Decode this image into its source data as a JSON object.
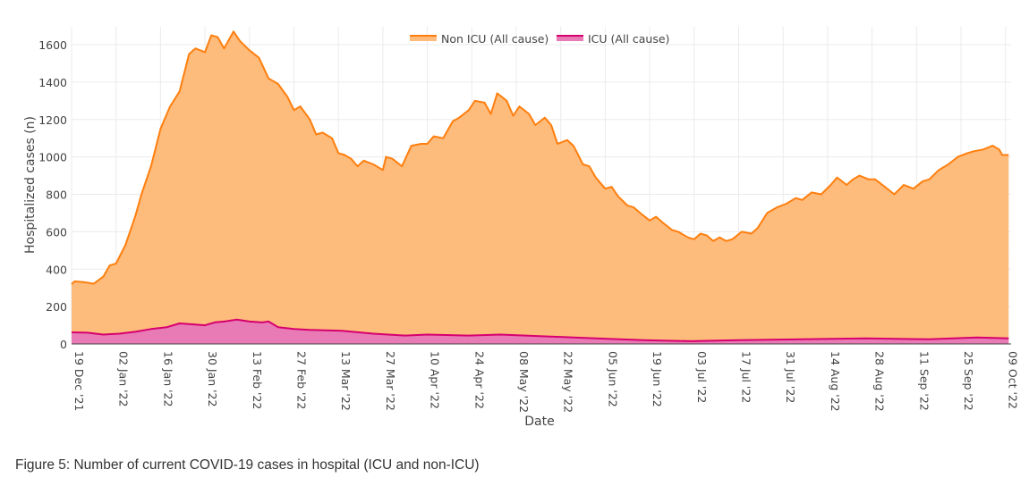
{
  "chart_data": {
    "type": "area",
    "title": "",
    "xlabel": "Date",
    "ylabel": "Hospitalized cases (n)",
    "x_unit": "days since 19 Dec '21",
    "xlim": [
      0,
      296
    ],
    "ylim": [
      0,
      1700
    ],
    "yticks": [
      0,
      200,
      400,
      600,
      800,
      1000,
      1200,
      1400,
      1600
    ],
    "xticks": [
      {
        "day": 0,
        "label": "19 Dec '21"
      },
      {
        "day": 14,
        "label": "02 Jan '22"
      },
      {
        "day": 28,
        "label": "16 Jan '22"
      },
      {
        "day": 42,
        "label": "30 Jan '22"
      },
      {
        "day": 56,
        "label": "13 Feb '22"
      },
      {
        "day": 70,
        "label": "27 Feb '22"
      },
      {
        "day": 84,
        "label": "13 Mar '22"
      },
      {
        "day": 98,
        "label": "27 Mar '22"
      },
      {
        "day": 112,
        "label": "10 Apr '22"
      },
      {
        "day": 126,
        "label": "24 Apr '22"
      },
      {
        "day": 140,
        "label": "08 May '22"
      },
      {
        "day": 154,
        "label": "22 May '22"
      },
      {
        "day": 168,
        "label": "05 Jun '22"
      },
      {
        "day": 182,
        "label": "19 Jun '22"
      },
      {
        "day": 196,
        "label": "03 Jul '22"
      },
      {
        "day": 210,
        "label": "17 Jul '22"
      },
      {
        "day": 224,
        "label": "31 Jul '22"
      },
      {
        "day": 238,
        "label": "14 Aug '22"
      },
      {
        "day": 252,
        "label": "28 Aug '22"
      },
      {
        "day": 266,
        "label": "11 Sep '22"
      },
      {
        "day": 280,
        "label": "25 Sep '22"
      },
      {
        "day": 294,
        "label": "09 Oct '22"
      }
    ],
    "grid": true,
    "legend_position": "top-center",
    "series": [
      {
        "name": "Non ICU (All cause)",
        "line": "#ff7f0e",
        "fill": "#fdbb7c",
        "points": [
          [
            0,
            320
          ],
          [
            1,
            335
          ],
          [
            4,
            330
          ],
          [
            7,
            322
          ],
          [
            10,
            360
          ],
          [
            12,
            420
          ],
          [
            14,
            430
          ],
          [
            17,
            530
          ],
          [
            20,
            680
          ],
          [
            22,
            800
          ],
          [
            25,
            950
          ],
          [
            28,
            1150
          ],
          [
            31,
            1270
          ],
          [
            34,
            1350
          ],
          [
            37,
            1550
          ],
          [
            39,
            1580
          ],
          [
            42,
            1560
          ],
          [
            44,
            1650
          ],
          [
            46,
            1640
          ],
          [
            48,
            1580
          ],
          [
            51,
            1670
          ],
          [
            53,
            1620
          ],
          [
            56,
            1570
          ],
          [
            59,
            1530
          ],
          [
            62,
            1420
          ],
          [
            65,
            1390
          ],
          [
            68,
            1320
          ],
          [
            70,
            1250
          ],
          [
            72,
            1270
          ],
          [
            75,
            1200
          ],
          [
            77,
            1120
          ],
          [
            79,
            1130
          ],
          [
            82,
            1100
          ],
          [
            84,
            1020
          ],
          [
            86,
            1010
          ],
          [
            88,
            990
          ],
          [
            90,
            950
          ],
          [
            92,
            980
          ],
          [
            95,
            960
          ],
          [
            98,
            930
          ],
          [
            99,
            1000
          ],
          [
            101,
            990
          ],
          [
            104,
            950
          ],
          [
            107,
            1060
          ],
          [
            110,
            1070
          ],
          [
            112,
            1070
          ],
          [
            114,
            1110
          ],
          [
            117,
            1100
          ],
          [
            120,
            1190
          ],
          [
            122,
            1210
          ],
          [
            125,
            1250
          ],
          [
            127,
            1300
          ],
          [
            130,
            1290
          ],
          [
            132,
            1230
          ],
          [
            134,
            1340
          ],
          [
            137,
            1300
          ],
          [
            139,
            1220
          ],
          [
            141,
            1270
          ],
          [
            144,
            1230
          ],
          [
            146,
            1170
          ],
          [
            149,
            1210
          ],
          [
            151,
            1170
          ],
          [
            153,
            1070
          ],
          [
            156,
            1090
          ],
          [
            158,
            1060
          ],
          [
            161,
            960
          ],
          [
            163,
            950
          ],
          [
            165,
            890
          ],
          [
            168,
            830
          ],
          [
            170,
            840
          ],
          [
            172,
            790
          ],
          [
            175,
            740
          ],
          [
            177,
            730
          ],
          [
            179,
            700
          ],
          [
            182,
            660
          ],
          [
            184,
            680
          ],
          [
            186,
            650
          ],
          [
            189,
            610
          ],
          [
            191,
            600
          ],
          [
            194,
            570
          ],
          [
            196,
            560
          ],
          [
            198,
            590
          ],
          [
            200,
            580
          ],
          [
            202,
            550
          ],
          [
            204,
            570
          ],
          [
            206,
            550
          ],
          [
            208,
            560
          ],
          [
            211,
            600
          ],
          [
            214,
            590
          ],
          [
            216,
            620
          ],
          [
            219,
            700
          ],
          [
            222,
            730
          ],
          [
            225,
            750
          ],
          [
            228,
            780
          ],
          [
            230,
            770
          ],
          [
            233,
            810
          ],
          [
            236,
            800
          ],
          [
            239,
            850
          ],
          [
            241,
            890
          ],
          [
            244,
            850
          ],
          [
            246,
            880
          ],
          [
            248,
            900
          ],
          [
            251,
            880
          ],
          [
            253,
            880
          ],
          [
            256,
            840
          ],
          [
            259,
            800
          ],
          [
            262,
            850
          ],
          [
            265,
            830
          ],
          [
            268,
            870
          ],
          [
            270,
            880
          ],
          [
            273,
            930
          ],
          [
            276,
            960
          ],
          [
            279,
            1000
          ],
          [
            282,
            1020
          ],
          [
            284,
            1030
          ],
          [
            287,
            1040
          ],
          [
            290,
            1060
          ],
          [
            292,
            1040
          ],
          [
            293,
            1010
          ],
          [
            295,
            1010
          ]
        ]
      },
      {
        "name": "ICU (All cause)",
        "line": "#d6006f",
        "fill": "#e87bb5",
        "points": [
          [
            0,
            62
          ],
          [
            5,
            60
          ],
          [
            10,
            50
          ],
          [
            15,
            55
          ],
          [
            20,
            65
          ],
          [
            25,
            80
          ],
          [
            30,
            90
          ],
          [
            34,
            110
          ],
          [
            38,
            105
          ],
          [
            42,
            100
          ],
          [
            45,
            115
          ],
          [
            48,
            120
          ],
          [
            52,
            130
          ],
          [
            56,
            120
          ],
          [
            60,
            115
          ],
          [
            62,
            120
          ],
          [
            65,
            90
          ],
          [
            70,
            80
          ],
          [
            75,
            75
          ],
          [
            85,
            70
          ],
          [
            95,
            55
          ],
          [
            105,
            45
          ],
          [
            112,
            50
          ],
          [
            125,
            45
          ],
          [
            135,
            50
          ],
          [
            150,
            40
          ],
          [
            165,
            30
          ],
          [
            180,
            20
          ],
          [
            195,
            15
          ],
          [
            210,
            20
          ],
          [
            230,
            25
          ],
          [
            250,
            30
          ],
          [
            270,
            25
          ],
          [
            285,
            35
          ],
          [
            295,
            30
          ]
        ]
      }
    ]
  },
  "caption": "Figure 5: Number of current COVID-19 cases in hospital (ICU and non-ICU)"
}
